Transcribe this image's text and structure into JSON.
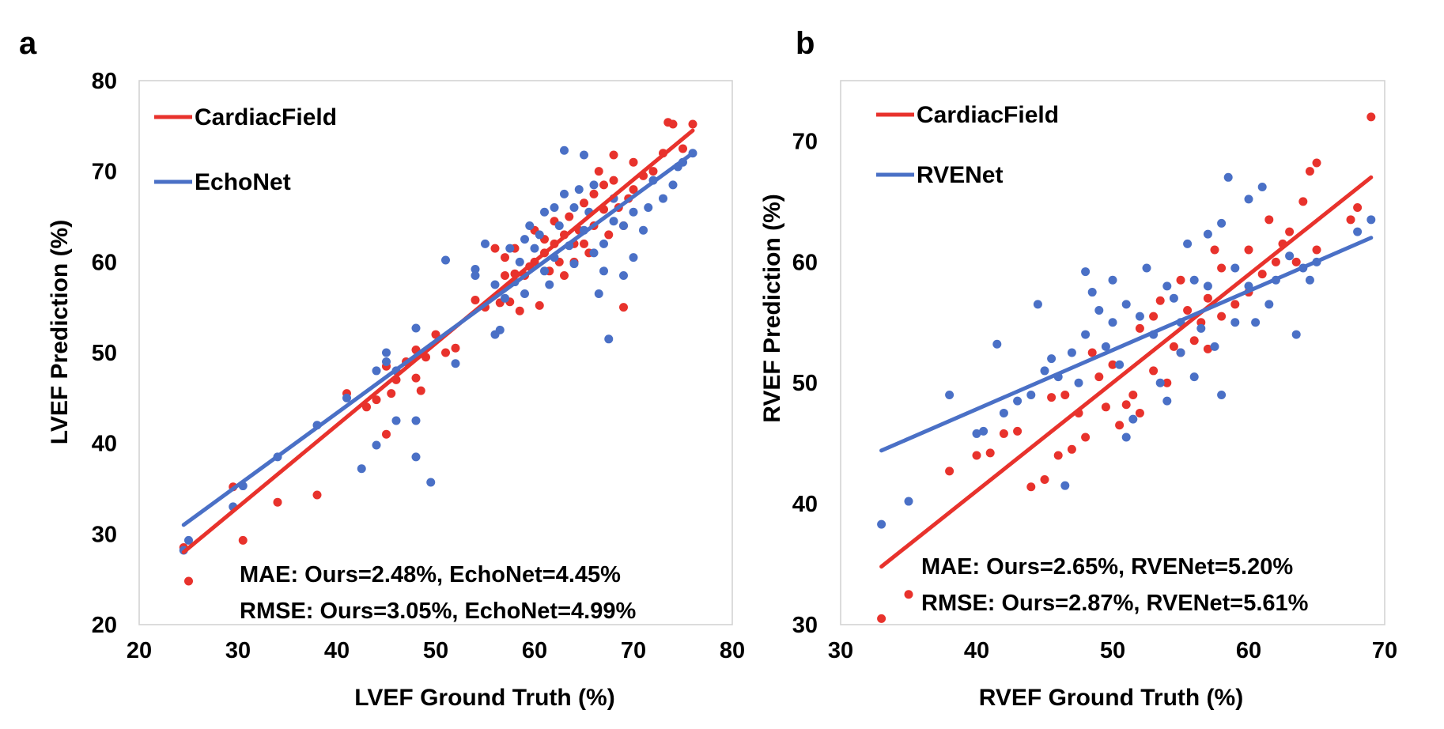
{
  "chart_data": [
    {
      "type": "scatter",
      "panel_label": "a",
      "xlabel": "LVEF Ground Truth (%)",
      "ylabel": "LVEF Prediction (%)",
      "xlim": [
        20,
        80
      ],
      "ylim": [
        20,
        80
      ],
      "xticks": [
        20,
        30,
        40,
        50,
        60,
        70,
        80
      ],
      "yticks": [
        20,
        30,
        40,
        50,
        60,
        70,
        80
      ],
      "grid": false,
      "legend_position": "top-left",
      "series": [
        {
          "name": "CardiacField",
          "color": "#e8322c",
          "trendline": [
            [
              24.5,
              28.0
            ],
            [
              76.0,
              74.5
            ]
          ],
          "points": [
            [
              24.5,
              28.5
            ],
            [
              25,
              24.8
            ],
            [
              29.5,
              35.2
            ],
            [
              30.5,
              29.3
            ],
            [
              34,
              33.5
            ],
            [
              38,
              34.3
            ],
            [
              41,
              45.5
            ],
            [
              43,
              44
            ],
            [
              44,
              44.8
            ],
            [
              45,
              41
            ],
            [
              45,
              48.5
            ],
            [
              45.5,
              45.5
            ],
            [
              46,
              47
            ],
            [
              47,
              49
            ],
            [
              48,
              47.2
            ],
            [
              48,
              50.3
            ],
            [
              48.5,
              45.8
            ],
            [
              49,
              49.5
            ],
            [
              50,
              52
            ],
            [
              51,
              50
            ],
            [
              52,
              50.5
            ],
            [
              54,
              55.8
            ],
            [
              55,
              55
            ],
            [
              56,
              61.5
            ],
            [
              56.5,
              55.5
            ],
            [
              57,
              60.5
            ],
            [
              57,
              58.5
            ],
            [
              57.5,
              55.6
            ],
            [
              58,
              58.7
            ],
            [
              58,
              61.5
            ],
            [
              58.5,
              54.6
            ],
            [
              59,
              58.5
            ],
            [
              59.5,
              59.5
            ],
            [
              60,
              60
            ],
            [
              60,
              63.5
            ],
            [
              60.5,
              55.2
            ],
            [
              61,
              62.5
            ],
            [
              61,
              61
            ],
            [
              61.5,
              59
            ],
            [
              62,
              62
            ],
            [
              62,
              64.5
            ],
            [
              62.5,
              60
            ],
            [
              63,
              58.5
            ],
            [
              63,
              63
            ],
            [
              63.5,
              65
            ],
            [
              64,
              62
            ],
            [
              64,
              60
            ],
            [
              64.5,
              63.5
            ],
            [
              65,
              66.5
            ],
            [
              65,
              62
            ],
            [
              65.5,
              61
            ],
            [
              66,
              64
            ],
            [
              66,
              67.5
            ],
            [
              66.5,
              70
            ],
            [
              67,
              65.8
            ],
            [
              67,
              68.5
            ],
            [
              67.5,
              63
            ],
            [
              68,
              69
            ],
            [
              68,
              71.8
            ],
            [
              68.5,
              66
            ],
            [
              69,
              55
            ],
            [
              69,
              64
            ],
            [
              69.5,
              67
            ],
            [
              70,
              71
            ],
            [
              70,
              68
            ],
            [
              71,
              69.5
            ],
            [
              72,
              70
            ],
            [
              73,
              72
            ],
            [
              73.5,
              75.4
            ],
            [
              74,
              75.2
            ],
            [
              75,
              72.5
            ],
            [
              76,
              75.2
            ]
          ]
        },
        {
          "name": "EchoNet",
          "color": "#4a70c6",
          "trendline": [
            [
              24.5,
              31.0
            ],
            [
              76.0,
              72.0
            ]
          ],
          "points": [
            [
              24.5,
              28.2
            ],
            [
              25,
              29.3
            ],
            [
              29.5,
              33
            ],
            [
              30.5,
              35.3
            ],
            [
              34,
              38.5
            ],
            [
              38,
              42
            ],
            [
              41,
              45
            ],
            [
              42.5,
              37.2
            ],
            [
              44,
              48
            ],
            [
              44,
              39.8
            ],
            [
              45,
              50
            ],
            [
              45,
              49
            ],
            [
              46,
              48
            ],
            [
              46,
              42.5
            ],
            [
              48,
              52.7
            ],
            [
              48,
              38.5
            ],
            [
              48,
              42.5
            ],
            [
              49.5,
              35.7
            ],
            [
              51,
              60.2
            ],
            [
              52,
              48.8
            ],
            [
              54,
              58.5
            ],
            [
              54,
              59.2
            ],
            [
              55,
              62
            ],
            [
              56,
              52
            ],
            [
              56,
              57.5
            ],
            [
              56.5,
              52.5
            ],
            [
              57,
              56
            ],
            [
              57.5,
              61.5
            ],
            [
              58,
              57.8
            ],
            [
              58.5,
              60
            ],
            [
              59,
              62.5
            ],
            [
              59,
              56.5
            ],
            [
              59.5,
              64
            ],
            [
              60,
              61.5
            ],
            [
              60.5,
              63
            ],
            [
              61,
              59
            ],
            [
              61,
              65.5
            ],
            [
              61.5,
              57.5
            ],
            [
              62,
              66
            ],
            [
              62,
              60.5
            ],
            [
              62.5,
              64
            ],
            [
              63,
              72.3
            ],
            [
              63,
              67.5
            ],
            [
              63.5,
              61.8
            ],
            [
              64,
              66
            ],
            [
              64,
              59.8
            ],
            [
              64.5,
              68
            ],
            [
              65,
              63.5
            ],
            [
              65,
              71.8
            ],
            [
              65.5,
              65.5
            ],
            [
              66,
              61
            ],
            [
              66,
              68.5
            ],
            [
              66.5,
              56.5
            ],
            [
              67,
              59
            ],
            [
              67,
              62
            ],
            [
              67.5,
              51.5
            ],
            [
              68,
              64.5
            ],
            [
              68,
              67
            ],
            [
              69,
              64
            ],
            [
              69,
              58.5
            ],
            [
              70,
              65.5
            ],
            [
              70,
              60.5
            ],
            [
              71,
              63.5
            ],
            [
              71.5,
              66
            ],
            [
              72,
              69
            ],
            [
              73,
              67
            ],
            [
              74,
              68.5
            ],
            [
              74.5,
              70.5
            ],
            [
              75,
              71
            ],
            [
              76,
              72
            ]
          ]
        }
      ],
      "annotations": [
        "MAE: Ours=2.48%, EchoNet=4.45%",
        "RMSE: Ours=3.05%, EchoNet=4.99%"
      ]
    },
    {
      "type": "scatter",
      "panel_label": "b",
      "xlabel": "RVEF Ground Truth (%)",
      "ylabel": "RVEF Prediction (%)",
      "xlim": [
        30,
        70
      ],
      "ylim": [
        30,
        75
      ],
      "xticks": [
        30,
        40,
        50,
        60,
        70
      ],
      "yticks": [
        30,
        40,
        50,
        60,
        70
      ],
      "grid": false,
      "legend_position": "top-left",
      "series": [
        {
          "name": "CardiacField",
          "color": "#e8322c",
          "trendline": [
            [
              33,
              34.8
            ],
            [
              69,
              67.0
            ]
          ],
          "points": [
            [
              33,
              30.5
            ],
            [
              35,
              32.5
            ],
            [
              38,
              42.7
            ],
            [
              40,
              44
            ],
            [
              41,
              44.2
            ],
            [
              42,
              45.8
            ],
            [
              43,
              46
            ],
            [
              44,
              41.4
            ],
            [
              45,
              42
            ],
            [
              45.5,
              48.8
            ],
            [
              46,
              44
            ],
            [
              46.5,
              49
            ],
            [
              47,
              44.5
            ],
            [
              47.5,
              47.5
            ],
            [
              48,
              45.5
            ],
            [
              48.5,
              52.5
            ],
            [
              49,
              50.5
            ],
            [
              49.5,
              48
            ],
            [
              50,
              51.5
            ],
            [
              50.5,
              46.5
            ],
            [
              51,
              48.2
            ],
            [
              51.5,
              49
            ],
            [
              52,
              54.5
            ],
            [
              52,
              47.5
            ],
            [
              53,
              55.5
            ],
            [
              53,
              51
            ],
            [
              53.5,
              56.8
            ],
            [
              54,
              50
            ],
            [
              54.5,
              53
            ],
            [
              55,
              52.5
            ],
            [
              55,
              58.5
            ],
            [
              55.5,
              56
            ],
            [
              56,
              53.5
            ],
            [
              56.5,
              55
            ],
            [
              57,
              57
            ],
            [
              57,
              52.8
            ],
            [
              57.5,
              61
            ],
            [
              58,
              55.5
            ],
            [
              58,
              59.5
            ],
            [
              59,
              56.5
            ],
            [
              60,
              61
            ],
            [
              60,
              57.5
            ],
            [
              61,
              59
            ],
            [
              61.5,
              63.5
            ],
            [
              62,
              60
            ],
            [
              62.5,
              61.5
            ],
            [
              63,
              62.5
            ],
            [
              63.5,
              60
            ],
            [
              64,
              65
            ],
            [
              64.5,
              67.5
            ],
            [
              65,
              68.2
            ],
            [
              65,
              61
            ],
            [
              67.5,
              63.5
            ],
            [
              68,
              64.5
            ],
            [
              69,
              72
            ]
          ]
        },
        {
          "name": "RVENet",
          "color": "#4a70c6",
          "trendline": [
            [
              33,
              44.4
            ],
            [
              69,
              62.0
            ]
          ],
          "points": [
            [
              33,
              38.3
            ],
            [
              35,
              40.2
            ],
            [
              38,
              49
            ],
            [
              40,
              45.8
            ],
            [
              40.5,
              46
            ],
            [
              41.5,
              53.2
            ],
            [
              42,
              47.5
            ],
            [
              43,
              48.5
            ],
            [
              44,
              49
            ],
            [
              44.5,
              56.5
            ],
            [
              45,
              51
            ],
            [
              45.5,
              52
            ],
            [
              46,
              50.5
            ],
            [
              46.5,
              41.5
            ],
            [
              47,
              52.5
            ],
            [
              47.5,
              50
            ],
            [
              48,
              54
            ],
            [
              48,
              59.2
            ],
            [
              48.5,
              57.5
            ],
            [
              49,
              56
            ],
            [
              49.5,
              53
            ],
            [
              50,
              55
            ],
            [
              50,
              58.5
            ],
            [
              50.5,
              51.5
            ],
            [
              51,
              56.5
            ],
            [
              51,
              45.5
            ],
            [
              51.5,
              47
            ],
            [
              52,
              55.5
            ],
            [
              52.5,
              59.5
            ],
            [
              53,
              54
            ],
            [
              53.5,
              50
            ],
            [
              54,
              58
            ],
            [
              54,
              48.5
            ],
            [
              54.5,
              57
            ],
            [
              55,
              55
            ],
            [
              55,
              52.5
            ],
            [
              55.5,
              61.5
            ],
            [
              56,
              58.5
            ],
            [
              56,
              50.5
            ],
            [
              56.5,
              54.5
            ],
            [
              57,
              62.3
            ],
            [
              57,
              58
            ],
            [
              57.5,
              53
            ],
            [
              58,
              63.2
            ],
            [
              58,
              49
            ],
            [
              58.5,
              67
            ],
            [
              59,
              59.5
            ],
            [
              59,
              55
            ],
            [
              60,
              58
            ],
            [
              60,
              65.2
            ],
            [
              60.5,
              55
            ],
            [
              61,
              66.2
            ],
            [
              61.5,
              56.5
            ],
            [
              62,
              58.5
            ],
            [
              63,
              60.5
            ],
            [
              63.5,
              54
            ],
            [
              64,
              59.5
            ],
            [
              64.5,
              58.5
            ],
            [
              65,
              60
            ],
            [
              68,
              62.5
            ],
            [
              69,
              63.5
            ]
          ]
        }
      ],
      "annotations": [
        "MAE: Ours=2.65%, RVENet=5.20%",
        "RMSE: Ours=2.87%, RVENet=5.61%"
      ]
    }
  ]
}
